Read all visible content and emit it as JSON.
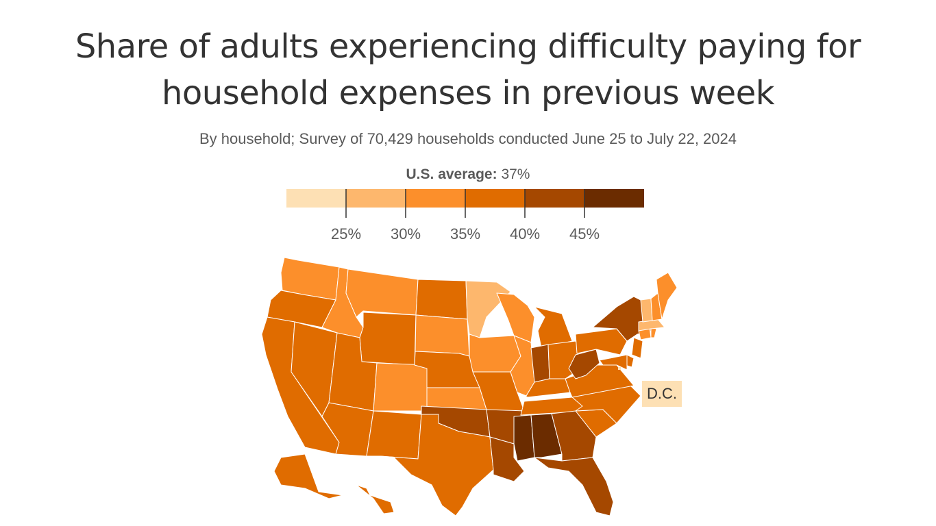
{
  "title_line1": "Share of adults experiencing difficulty paying for",
  "title_line2": "household expenses in previous week",
  "subtitle": "By household; Survey of 70,429 households conducted June 25 to July 22, 2024",
  "average": {
    "label": "U.S. average:",
    "value": "37%"
  },
  "legend": {
    "colors": [
      "#fde0b4",
      "#fdb76d",
      "#fc8f2b",
      "#e06c00",
      "#a54800",
      "#6b2c00"
    ],
    "ticks": [
      "25%",
      "30%",
      "35%",
      "40%",
      "45%"
    ]
  },
  "dc_label": "D.C.",
  "chart_data": {
    "type": "choropleth",
    "bins": [
      "<25%",
      "25–30%",
      "30–35%",
      "35–40%",
      "40–45%",
      ">45%"
    ],
    "states": {
      "WA": 2,
      "OR": 3,
      "CA": 3,
      "NV": 3,
      "ID": 2,
      "MT": 2,
      "WY": 3,
      "UT": 3,
      "AZ": 3,
      "CO": 2,
      "NM": 3,
      "ND": 3,
      "SD": 2,
      "NE": 3,
      "KS": 2,
      "OK": 4,
      "TX": 3,
      "MN": 1,
      "IA": 2,
      "MO": 3,
      "AR": 4,
      "LA": 4,
      "WI": 2,
      "IL": 2,
      "MI": 3,
      "IN": 4,
      "OH": 3,
      "KY": 3,
      "TN": 3,
      "MS": 5,
      "AL": 5,
      "GA": 4,
      "FL": 4,
      "SC": 3,
      "NC": 3,
      "VA": 3,
      "WV": 4,
      "PA": 3,
      "NY": 4,
      "NJ": 3,
      "DE": 3,
      "MD": 3,
      "CT": 2,
      "RI": 2,
      "MA": 1,
      "VT": 1,
      "NH": 2,
      "ME": 2,
      "AK": 3,
      "HI": 3,
      "DC": 0
    }
  }
}
